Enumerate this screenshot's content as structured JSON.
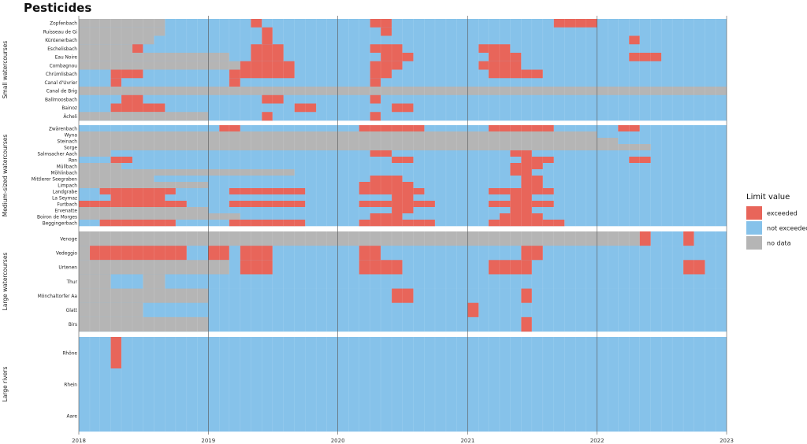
{
  "chart_data": {
    "type": "heatmap",
    "title": "Pesticides",
    "xlim": [
      "2018-01-01",
      "2023-01-01"
    ],
    "x_ticks": [
      "2018",
      "2019",
      "2020",
      "2021",
      "2022",
      "2023"
    ],
    "grid": true,
    "legend": {
      "title": "Limit value",
      "placement": "right",
      "entries": [
        {
          "key": "exceeded",
          "label": "exceeded",
          "color": "#e8655a"
        },
        {
          "key": "not_exceeded",
          "label": "not exceeded",
          "color": "#86c2ea"
        },
        {
          "key": "no_data",
          "label": "no data",
          "color": "#b5b5b5"
        }
      ]
    },
    "groups": [
      {
        "name": "Small watercourses",
        "rows": [
          {
            "name": "Zopfenbach",
            "segments": [
              [
                "2018-01-01",
                "2018-09-01",
                "no_data"
              ],
              [
                "2019-05-01",
                "2019-06-01",
                "exceeded"
              ],
              [
                "2020-04-01",
                "2020-06-01",
                "exceeded"
              ],
              [
                "2021-09-01",
                "2022-01-01",
                "exceeded"
              ]
            ]
          },
          {
            "name": "Ruisseau de Gi",
            "segments": [
              [
                "2018-01-01",
                "2018-09-01",
                "no_data"
              ],
              [
                "2019-06-01",
                "2019-07-01",
                "exceeded"
              ],
              [
                "2020-05-01",
                "2020-06-01",
                "exceeded"
              ]
            ]
          },
          {
            "name": "Küntenerbach",
            "segments": [
              [
                "2018-01-01",
                "2018-08-01",
                "no_data"
              ],
              [
                "2019-06-01",
                "2019-07-01",
                "exceeded"
              ],
              [
                "2022-04-01",
                "2022-05-01",
                "exceeded"
              ]
            ]
          },
          {
            "name": "Eschelisbach",
            "segments": [
              [
                "2018-01-01",
                "2018-06-01",
                "no_data"
              ],
              [
                "2018-06-01",
                "2018-07-01",
                "exceeded"
              ],
              [
                "2019-05-01",
                "2019-08-01",
                "exceeded"
              ],
              [
                "2020-04-01",
                "2020-07-01",
                "exceeded"
              ],
              [
                "2021-02-01",
                "2021-05-01",
                "exceeded"
              ]
            ]
          },
          {
            "name": "Eau Noire",
            "segments": [
              [
                "2018-01-01",
                "2019-03-01",
                "no_data"
              ],
              [
                "2019-05-01",
                "2019-08-01",
                "exceeded"
              ],
              [
                "2020-05-01",
                "2020-08-01",
                "exceeded"
              ],
              [
                "2021-03-01",
                "2021-06-01",
                "exceeded"
              ],
              [
                "2022-04-01",
                "2022-07-01",
                "exceeded"
              ]
            ]
          },
          {
            "name": "Combagnou",
            "segments": [
              [
                "2018-01-01",
                "2019-04-01",
                "no_data"
              ],
              [
                "2019-04-01",
                "2019-09-01",
                "exceeded"
              ],
              [
                "2020-04-01",
                "2020-07-01",
                "exceeded"
              ],
              [
                "2021-02-01",
                "2021-06-01",
                "exceeded"
              ]
            ]
          },
          {
            "name": "Chrümlisbach",
            "segments": [
              [
                "2018-04-01",
                "2018-07-01",
                "exceeded"
              ],
              [
                "2019-03-01",
                "2019-09-01",
                "exceeded"
              ],
              [
                "2020-04-01",
                "2020-06-01",
                "exceeded"
              ],
              [
                "2021-03-01",
                "2021-08-01",
                "exceeded"
              ]
            ]
          },
          {
            "name": "Canal d'Uvrier",
            "segments": [
              [
                "2018-04-01",
                "2018-05-01",
                "exceeded"
              ],
              [
                "2019-03-01",
                "2019-04-01",
                "exceeded"
              ],
              [
                "2020-04-01",
                "2020-05-01",
                "exceeded"
              ]
            ]
          },
          {
            "name": "Canal de Brig",
            "segments": [
              [
                "2018-01-01",
                "2023-01-01",
                "no_data"
              ]
            ]
          },
          {
            "name": "Ballmoosbach",
            "segments": [
              [
                "2018-05-01",
                "2018-07-01",
                "exceeded"
              ],
              [
                "2019-06-01",
                "2019-08-01",
                "exceeded"
              ],
              [
                "2020-04-01",
                "2020-05-01",
                "exceeded"
              ]
            ]
          },
          {
            "name": "Bainoz",
            "segments": [
              [
                "2018-04-01",
                "2018-09-01",
                "exceeded"
              ],
              [
                "2019-09-01",
                "2019-11-01",
                "exceeded"
              ],
              [
                "2020-06-01",
                "2020-08-01",
                "exceeded"
              ]
            ]
          },
          {
            "name": "Ächeli",
            "segments": [
              [
                "2018-01-01",
                "2019-01-01",
                "no_data"
              ],
              [
                "2019-06-01",
                "2019-07-01",
                "exceeded"
              ],
              [
                "2020-04-01",
                "2020-05-01",
                "exceeded"
              ]
            ]
          }
        ]
      },
      {
        "name": "Medium-sized watercourses",
        "rows": [
          {
            "name": "Zwärenbach",
            "segments": [
              [
                "2019-02-01",
                "2019-04-01",
                "exceeded"
              ],
              [
                "2020-03-01",
                "2020-09-01",
                "exceeded"
              ],
              [
                "2021-03-01",
                "2021-09-01",
                "exceeded"
              ],
              [
                "2022-03-01",
                "2022-05-01",
                "exceeded"
              ]
            ]
          },
          {
            "name": "Wyna",
            "segments": [
              [
                "2018-01-01",
                "2019-06-01",
                "no_data"
              ],
              [
                "2019-06-01",
                "2022-01-01",
                "no_data"
              ]
            ]
          },
          {
            "name": "Steinach",
            "segments": [
              [
                "2018-01-01",
                "2022-03-01",
                "no_data"
              ]
            ]
          },
          {
            "name": "Sorge",
            "segments": [
              [
                "2018-01-01",
                "2022-06-01",
                "no_data"
              ]
            ]
          },
          {
            "name": "Salmsacher Aach",
            "segments": [
              [
                "2018-01-01",
                "2018-04-01",
                "no_data"
              ],
              [
                "2020-04-01",
                "2020-06-01",
                "exceeded"
              ],
              [
                "2021-05-01",
                "2021-07-01",
                "exceeded"
              ]
            ]
          },
          {
            "name": "Ron",
            "segments": [
              [
                "2018-04-01",
                "2018-06-01",
                "exceeded"
              ],
              [
                "2020-06-01",
                "2020-08-01",
                "exceeded"
              ],
              [
                "2021-06-01",
                "2021-09-01",
                "exceeded"
              ],
              [
                "2022-04-01",
                "2022-06-01",
                "exceeded"
              ]
            ]
          },
          {
            "name": "Müllbach",
            "segments": [
              [
                "2018-01-01",
                "2018-05-01",
                "no_data"
              ],
              [
                "2021-05-01",
                "2021-08-01",
                "exceeded"
              ]
            ]
          },
          {
            "name": "Möhlinbach",
            "segments": [
              [
                "2018-01-01",
                "2019-09-01",
                "no_data"
              ],
              [
                "2021-05-01",
                "2021-07-01",
                "exceeded"
              ]
            ]
          },
          {
            "name": "Mittlerer Seegraben",
            "segments": [
              [
                "2018-01-01",
                "2018-08-01",
                "no_data"
              ],
              [
                "2020-04-01",
                "2020-07-01",
                "exceeded"
              ],
              [
                "2021-06-01",
                "2021-08-01",
                "exceeded"
              ]
            ]
          },
          {
            "name": "Limpach",
            "segments": [
              [
                "2018-01-01",
                "2019-01-01",
                "no_data"
              ],
              [
                "2020-03-01",
                "2020-08-01",
                "exceeded"
              ],
              [
                "2021-06-01",
                "2021-08-01",
                "exceeded"
              ]
            ]
          },
          {
            "name": "Landgrabe",
            "segments": [
              [
                "2018-03-01",
                "2018-10-01",
                "exceeded"
              ],
              [
                "2019-03-01",
                "2019-10-01",
                "exceeded"
              ],
              [
                "2020-03-01",
                "2020-09-01",
                "exceeded"
              ],
              [
                "2021-03-01",
                "2021-09-01",
                "exceeded"
              ]
            ]
          },
          {
            "name": "La Seymaz",
            "segments": [
              [
                "2018-04-01",
                "2018-09-01",
                "exceeded"
              ],
              [
                "2020-06-01",
                "2020-08-01",
                "exceeded"
              ],
              [
                "2021-05-01",
                "2021-07-01",
                "exceeded"
              ]
            ]
          },
          {
            "name": "Furtbach",
            "segments": [
              [
                "2018-01-01",
                "2018-11-01",
                "exceeded"
              ],
              [
                "2019-03-01",
                "2019-10-01",
                "exceeded"
              ],
              [
                "2020-03-01",
                "2020-10-01",
                "exceeded"
              ],
              [
                "2021-03-01",
                "2021-09-01",
                "exceeded"
              ]
            ]
          },
          {
            "name": "Ervenatte",
            "segments": [
              [
                "2018-01-01",
                "2019-01-01",
                "no_data"
              ],
              [
                "2020-06-01",
                "2020-08-01",
                "exceeded"
              ],
              [
                "2021-05-01",
                "2021-07-01",
                "exceeded"
              ]
            ]
          },
          {
            "name": "Boiron de Morges",
            "segments": [
              [
                "2018-01-01",
                "2019-04-01",
                "no_data"
              ],
              [
                "2020-04-01",
                "2020-07-01",
                "exceeded"
              ],
              [
                "2021-04-01",
                "2021-08-01",
                "exceeded"
              ]
            ]
          },
          {
            "name": "Beggingerbach",
            "segments": [
              [
                "2018-03-01",
                "2018-10-01",
                "exceeded"
              ],
              [
                "2019-03-01",
                "2019-10-01",
                "exceeded"
              ],
              [
                "2020-03-01",
                "2020-10-01",
                "exceeded"
              ],
              [
                "2021-03-01",
                "2021-10-01",
                "exceeded"
              ]
            ]
          }
        ]
      },
      {
        "name": "Large watercourses",
        "rows": [
          {
            "name": "Venoge",
            "segments": [
              [
                "2018-01-01",
                "2022-05-01",
                "no_data"
              ],
              [
                "2022-05-01",
                "2022-06-01",
                "exceeded"
              ],
              [
                "2022-09-01",
                "2022-10-01",
                "exceeded"
              ]
            ]
          },
          {
            "name": "Vedeggio",
            "segments": [
              [
                "2018-01-01",
                "2018-02-01",
                "no_data"
              ],
              [
                "2018-02-01",
                "2018-11-01",
                "exceeded"
              ],
              [
                "2019-01-01",
                "2019-03-01",
                "exceeded"
              ],
              [
                "2019-04-01",
                "2019-07-01",
                "exceeded"
              ],
              [
                "2020-03-01",
                "2020-05-01",
                "exceeded"
              ],
              [
                "2021-06-01",
                "2021-08-01",
                "exceeded"
              ]
            ]
          },
          {
            "name": "Urtenen",
            "segments": [
              [
                "2018-01-01",
                "2019-03-01",
                "no_data"
              ],
              [
                "2019-04-01",
                "2019-07-01",
                "exceeded"
              ],
              [
                "2020-03-01",
                "2020-07-01",
                "exceeded"
              ],
              [
                "2021-03-01",
                "2021-07-01",
                "exceeded"
              ],
              [
                "2022-09-01",
                "2022-11-01",
                "exceeded"
              ]
            ]
          },
          {
            "name": "Thur",
            "segments": [
              [
                "2018-01-01",
                "2018-04-01",
                "no_data"
              ],
              [
                "2018-07-01",
                "2018-09-01",
                "no_data"
              ]
            ]
          },
          {
            "name": "Mönchaltorfer Aa",
            "segments": [
              [
                "2018-01-01",
                "2019-01-01",
                "no_data"
              ],
              [
                "2020-06-01",
                "2020-08-01",
                "exceeded"
              ],
              [
                "2021-06-01",
                "2021-07-01",
                "exceeded"
              ]
            ]
          },
          {
            "name": "Glatt",
            "segments": [
              [
                "2018-01-01",
                "2018-07-01",
                "no_data"
              ],
              [
                "2021-01-01",
                "2021-02-01",
                "exceeded"
              ]
            ]
          },
          {
            "name": "Birs",
            "segments": [
              [
                "2018-01-01",
                "2019-01-01",
                "no_data"
              ],
              [
                "2021-06-01",
                "2021-07-01",
                "exceeded"
              ]
            ]
          }
        ]
      },
      {
        "name": "Large rivers",
        "rows": [
          {
            "name": "Rhône",
            "segments": [
              [
                "2018-04-01",
                "2018-05-01",
                "exceeded"
              ]
            ]
          },
          {
            "name": "Rhein",
            "segments": []
          },
          {
            "name": "Aare",
            "segments": []
          }
        ]
      }
    ]
  }
}
